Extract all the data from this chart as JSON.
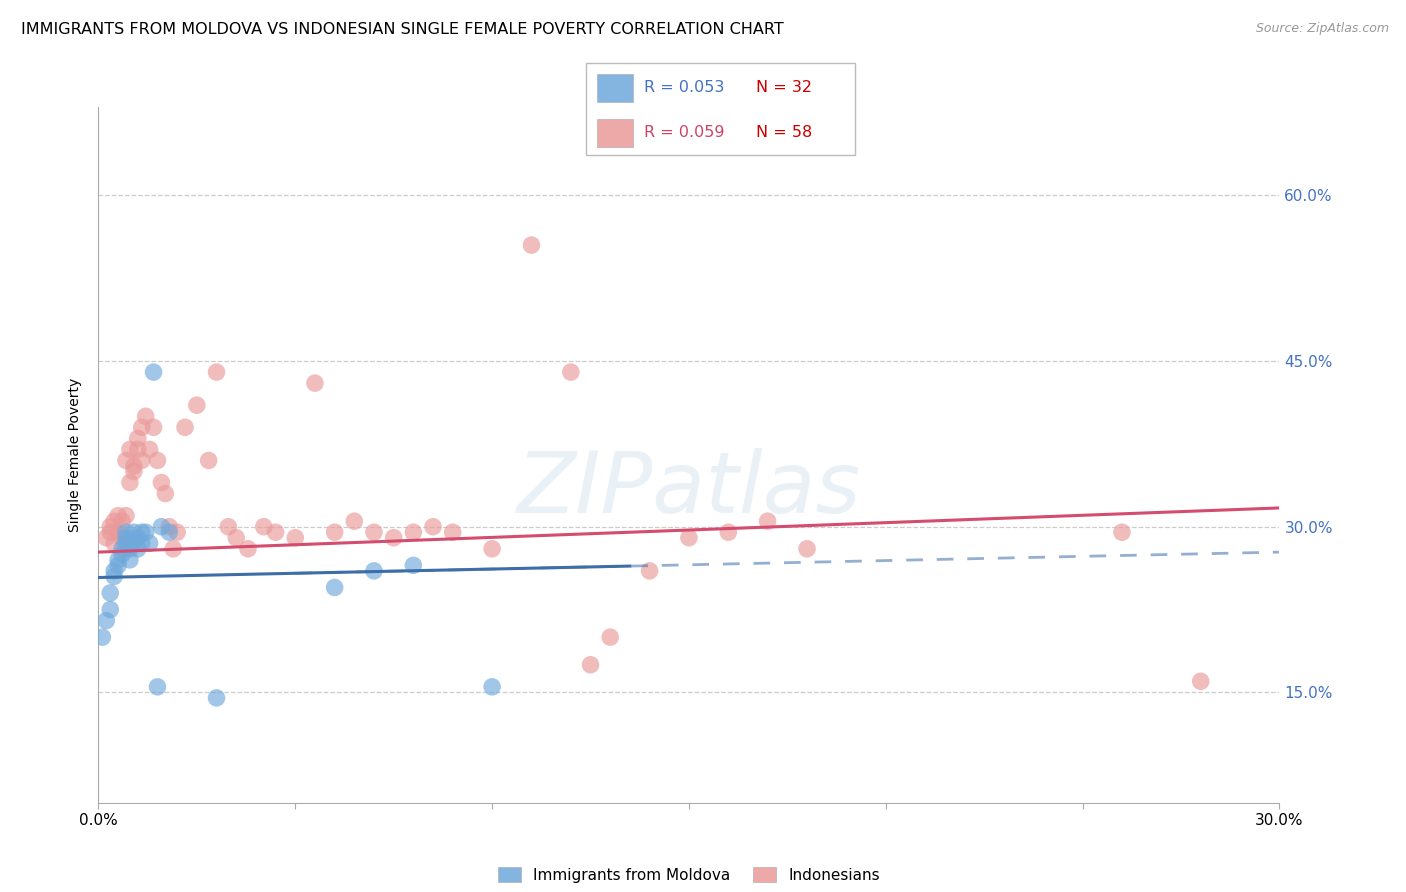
{
  "title": "IMMIGRANTS FROM MOLDOVA VS INDONESIAN SINGLE FEMALE POVERTY CORRELATION CHART",
  "source": "Source: ZipAtlas.com",
  "ylabel": "Single Female Poverty",
  "ytick_labels": [
    "15.0%",
    "30.0%",
    "45.0%",
    "60.0%"
  ],
  "ytick_values": [
    0.15,
    0.3,
    0.45,
    0.6
  ],
  "xlim": [
    0.0,
    0.3
  ],
  "ylim": [
    0.05,
    0.68
  ],
  "legend1_r": "0.053",
  "legend1_n": "32",
  "legend2_r": "0.059",
  "legend2_n": "58",
  "moldova_color": "#6fa8dc",
  "indonesian_color": "#ea9999",
  "moldova_line_color": "#3d6ea8",
  "indonesian_line_color": "#d44c6e",
  "watermark": "ZIPatlas",
  "moldova_x": [
    0.001,
    0.002,
    0.003,
    0.003,
    0.004,
    0.004,
    0.005,
    0.005,
    0.006,
    0.006,
    0.007,
    0.007,
    0.007,
    0.008,
    0.008,
    0.009,
    0.009,
    0.01,
    0.01,
    0.011,
    0.011,
    0.012,
    0.013,
    0.014,
    0.016,
    0.018,
    0.06,
    0.07,
    0.08,
    0.1,
    0.015,
    0.03
  ],
  "moldova_y": [
    0.2,
    0.215,
    0.225,
    0.24,
    0.255,
    0.26,
    0.265,
    0.27,
    0.275,
    0.28,
    0.285,
    0.29,
    0.295,
    0.27,
    0.28,
    0.285,
    0.295,
    0.28,
    0.29,
    0.285,
    0.295,
    0.295,
    0.285,
    0.44,
    0.3,
    0.295,
    0.245,
    0.26,
    0.265,
    0.155,
    0.155,
    0.145
  ],
  "indonesian_x": [
    0.002,
    0.003,
    0.003,
    0.004,
    0.004,
    0.005,
    0.005,
    0.006,
    0.006,
    0.007,
    0.007,
    0.008,
    0.008,
    0.009,
    0.009,
    0.01,
    0.01,
    0.011,
    0.011,
    0.012,
    0.013,
    0.014,
    0.015,
    0.016,
    0.017,
    0.018,
    0.019,
    0.02,
    0.022,
    0.025,
    0.028,
    0.03,
    0.033,
    0.035,
    0.038,
    0.042,
    0.045,
    0.05,
    0.055,
    0.06,
    0.065,
    0.07,
    0.075,
    0.08,
    0.085,
    0.09,
    0.1,
    0.11,
    0.12,
    0.125,
    0.13,
    0.14,
    0.15,
    0.16,
    0.17,
    0.18,
    0.26,
    0.28
  ],
  "indonesian_y": [
    0.29,
    0.295,
    0.3,
    0.285,
    0.305,
    0.295,
    0.31,
    0.29,
    0.305,
    0.31,
    0.36,
    0.34,
    0.37,
    0.35,
    0.355,
    0.37,
    0.38,
    0.39,
    0.36,
    0.4,
    0.37,
    0.39,
    0.36,
    0.34,
    0.33,
    0.3,
    0.28,
    0.295,
    0.39,
    0.41,
    0.36,
    0.44,
    0.3,
    0.29,
    0.28,
    0.3,
    0.295,
    0.29,
    0.43,
    0.295,
    0.305,
    0.295,
    0.29,
    0.295,
    0.3,
    0.295,
    0.28,
    0.555,
    0.44,
    0.175,
    0.2,
    0.26,
    0.29,
    0.295,
    0.305,
    0.28,
    0.295,
    0.16
  ],
  "title_fontsize": 11.5,
  "axis_label_fontsize": 10,
  "tick_fontsize": 11
}
